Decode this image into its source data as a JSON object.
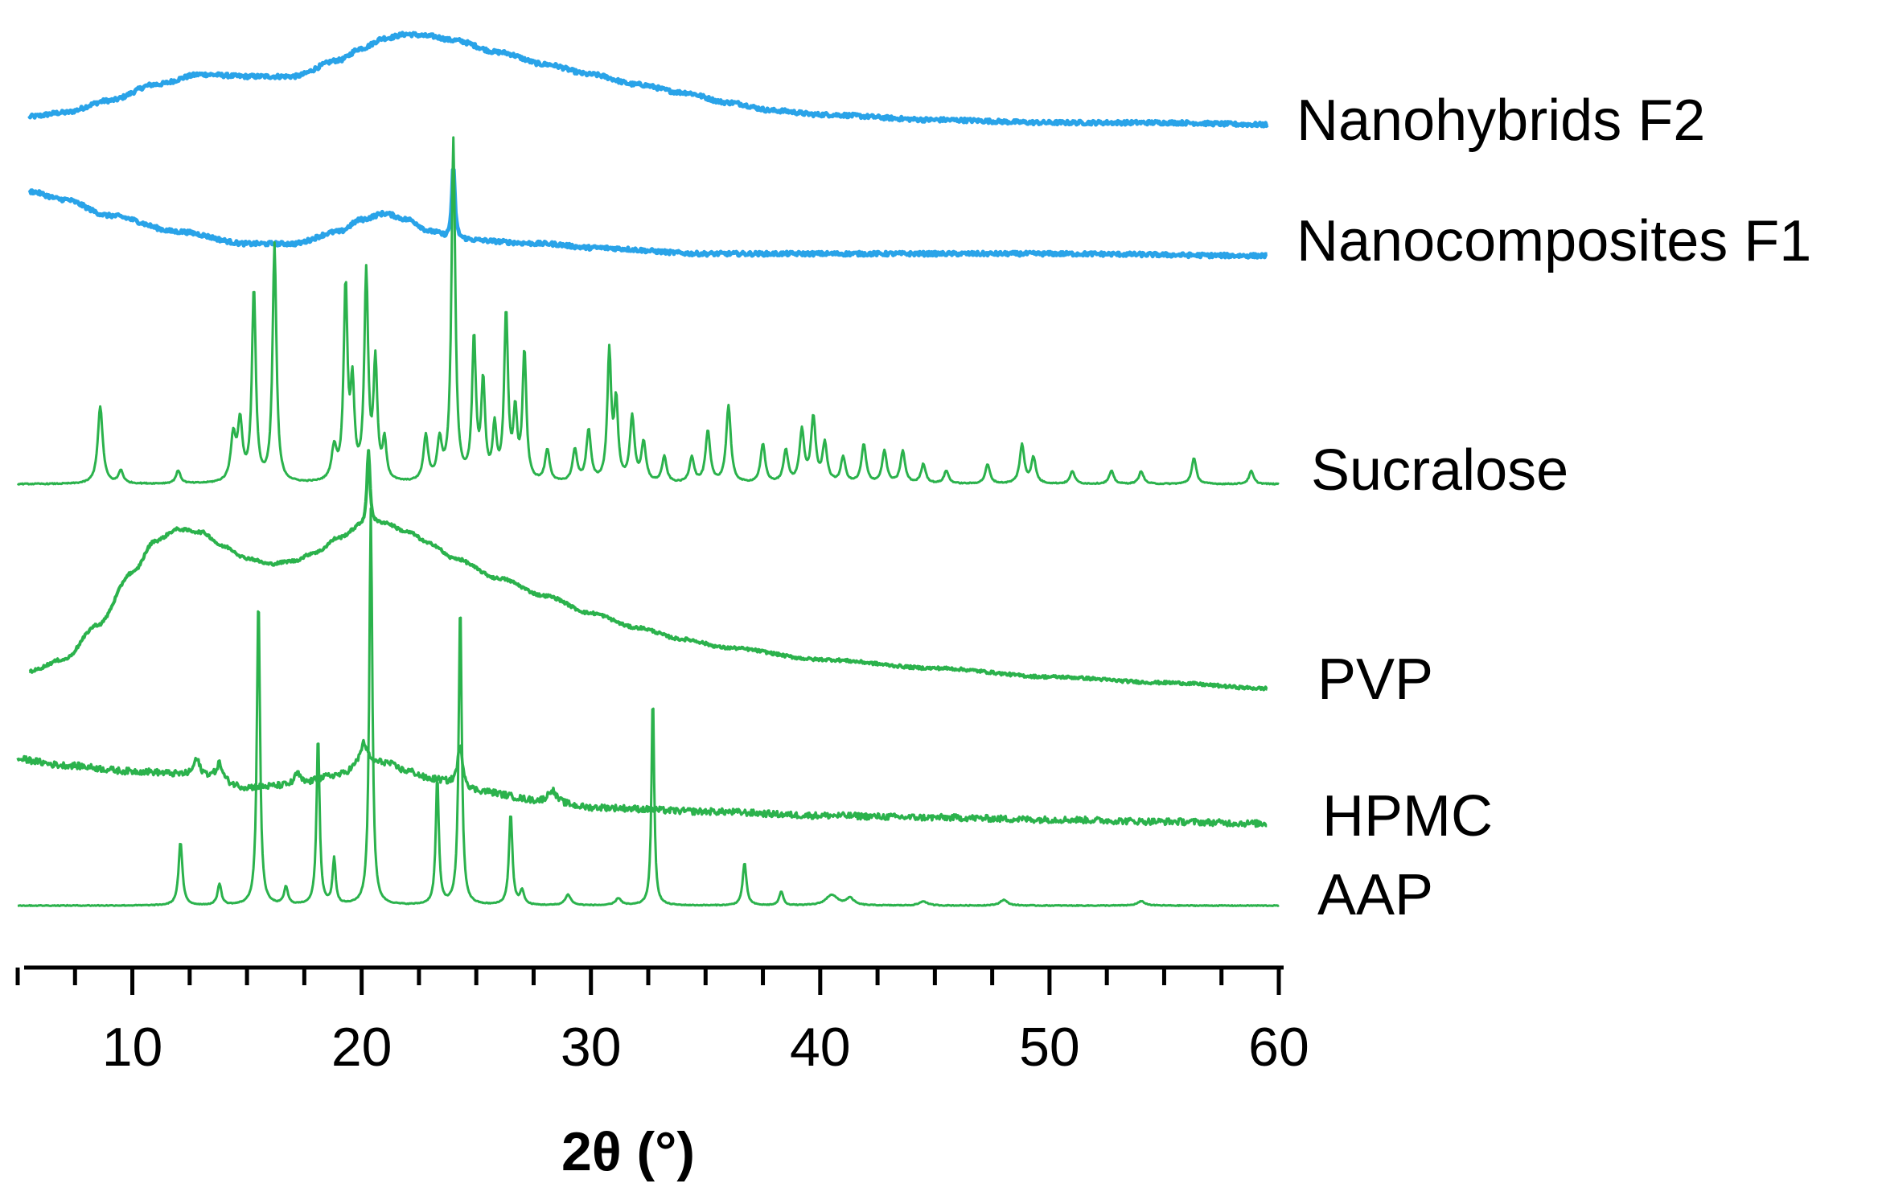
{
  "chart_data": {
    "type": "line",
    "title": "",
    "xlabel": "2θ (°)",
    "ylabel": "",
    "xlim": [
      5,
      60
    ],
    "x_ticks": [
      10,
      20,
      30,
      40,
      50,
      60
    ],
    "grid": false,
    "layout": "stacked-offset",
    "series": [
      {
        "name": "Nanohybrids F2",
        "color": "#29a3e8",
        "noise": 0.5,
        "points": [
          [
            5.5,
            2.0
          ],
          [
            7,
            3.0
          ],
          [
            9,
            6.0
          ],
          [
            11,
            10.0
          ],
          [
            13,
            12.5
          ],
          [
            15,
            12.0
          ],
          [
            17,
            12.0
          ],
          [
            19,
            16.0
          ],
          [
            20,
            19.0
          ],
          [
            21,
            21.5
          ],
          [
            22,
            22.5
          ],
          [
            23,
            22.0
          ],
          [
            24,
            21.0
          ],
          [
            26,
            18.0
          ],
          [
            28,
            15.0
          ],
          [
            30,
            12.5
          ],
          [
            32,
            10.0
          ],
          [
            34,
            8.0
          ],
          [
            36,
            5.5
          ],
          [
            38,
            3.5
          ],
          [
            40,
            2.5
          ],
          [
            45,
            1.2
          ],
          [
            50,
            0.5
          ],
          [
            55,
            0.5
          ],
          [
            59.5,
            0
          ]
        ]
      },
      {
        "name": "Nanocomposites F1",
        "color": "#29a3e8",
        "noise": 0.5,
        "points": [
          [
            5.5,
            16.0
          ],
          [
            7,
            14.0
          ],
          [
            9,
            10.0
          ],
          [
            12,
            6.0
          ],
          [
            15,
            3.0
          ],
          [
            17,
            3.0
          ],
          [
            19,
            6.0
          ],
          [
            20,
            9.0
          ],
          [
            21,
            10.5
          ],
          [
            22,
            9.0
          ],
          [
            23,
            6.0
          ],
          [
            24,
            4.0
          ],
          [
            28,
            3.0
          ],
          [
            30,
            2.0
          ],
          [
            35,
            0.5
          ],
          [
            40,
            0.5
          ],
          [
            50,
            0.5
          ],
          [
            59.5,
            0
          ]
        ],
        "peaks": [
          [
            24.0,
            18.0,
            0.08
          ]
        ]
      },
      {
        "name": "Sucralose",
        "color": "#2bb24c",
        "noise": 0.08,
        "points": [
          [
            5,
            0
          ],
          [
            60,
            0
          ]
        ],
        "peaks": [
          [
            8.6,
            12.0,
            0.13
          ],
          [
            9.5,
            2.0,
            0.12
          ],
          [
            12.0,
            2.0,
            0.12
          ],
          [
            14.4,
            7.0,
            0.13
          ],
          [
            14.7,
            9.0,
            0.12
          ],
          [
            15.3,
            30.0,
            0.1
          ],
          [
            16.2,
            37.0,
            0.1
          ],
          [
            18.8,
            5.0,
            0.13
          ],
          [
            19.3,
            30.0,
            0.1
          ],
          [
            19.6,
            14.0,
            0.1
          ],
          [
            20.2,
            32.0,
            0.1
          ],
          [
            20.6,
            18.0,
            0.1
          ],
          [
            21.0,
            6.0,
            0.1
          ],
          [
            22.8,
            7.0,
            0.12
          ],
          [
            23.4,
            6.0,
            0.12
          ],
          [
            24.0,
            53.0,
            0.1
          ],
          [
            24.9,
            22.0,
            0.1
          ],
          [
            25.3,
            15.0,
            0.1
          ],
          [
            25.8,
            8.0,
            0.1
          ],
          [
            26.3,
            26.0,
            0.1
          ],
          [
            26.7,
            10.0,
            0.1
          ],
          [
            27.1,
            20.0,
            0.1
          ],
          [
            28.1,
            5.0,
            0.12
          ],
          [
            29.3,
            5.0,
            0.12
          ],
          [
            29.9,
            8.0,
            0.12
          ],
          [
            30.8,
            20.0,
            0.1
          ],
          [
            31.1,
            12.0,
            0.1
          ],
          [
            31.8,
            10.0,
            0.12
          ],
          [
            32.3,
            6.0,
            0.12
          ],
          [
            33.2,
            4.0,
            0.12
          ],
          [
            34.4,
            4.0,
            0.12
          ],
          [
            35.1,
            8.0,
            0.12
          ],
          [
            36.0,
            12.0,
            0.12
          ],
          [
            37.5,
            6.0,
            0.12
          ],
          [
            38.5,
            5.0,
            0.12
          ],
          [
            39.2,
            8.0,
            0.12
          ],
          [
            39.7,
            10.0,
            0.12
          ],
          [
            40.2,
            6.0,
            0.12
          ],
          [
            41.0,
            4.0,
            0.12
          ],
          [
            41.9,
            6.0,
            0.12
          ],
          [
            42.8,
            5.0,
            0.12
          ],
          [
            43.6,
            5.0,
            0.12
          ],
          [
            44.5,
            3.0,
            0.12
          ],
          [
            45.5,
            2.0,
            0.12
          ],
          [
            47.3,
            3.0,
            0.12
          ],
          [
            48.8,
            6.0,
            0.12
          ],
          [
            49.3,
            4.0,
            0.12
          ],
          [
            51.0,
            2.0,
            0.12
          ],
          [
            52.7,
            2.0,
            0.12
          ],
          [
            54.0,
            2.0,
            0.12
          ],
          [
            56.3,
            4.0,
            0.12
          ],
          [
            58.8,
            2.0,
            0.12
          ]
        ]
      },
      {
        "name": "PVP",
        "color": "#2bb24c",
        "noise": 0.25,
        "points": [
          [
            5.5,
            3.0
          ],
          [
            7,
            5.0
          ],
          [
            8.5,
            11.0
          ],
          [
            10,
            20.0
          ],
          [
            11,
            25.5
          ],
          [
            12,
            27.5
          ],
          [
            13,
            27.0
          ],
          [
            14,
            24.5
          ],
          [
            15,
            22.5
          ],
          [
            16,
            21.5
          ],
          [
            17,
            22.0
          ],
          [
            18,
            23.5
          ],
          [
            19,
            26.0
          ],
          [
            20,
            28.0
          ],
          [
            21,
            28.5
          ],
          [
            22,
            27.0
          ],
          [
            23,
            25.0
          ],
          [
            24,
            22.5
          ],
          [
            26,
            19.0
          ],
          [
            28,
            16.0
          ],
          [
            30,
            13.0
          ],
          [
            32,
            10.5
          ],
          [
            34,
            8.5
          ],
          [
            36,
            7.0
          ],
          [
            40,
            5.0
          ],
          [
            45,
            3.5
          ],
          [
            50,
            2.0
          ],
          [
            55,
            1.0
          ],
          [
            59.5,
            0
          ]
        ],
        "peaks": [
          [
            20.3,
            13.0,
            0.08
          ]
        ]
      },
      {
        "name": "HPMC",
        "color": "#2bb24c",
        "noise": 0.8,
        "points": [
          [
            5,
            16.0
          ],
          [
            7,
            14.5
          ],
          [
            10,
            13.0
          ],
          [
            13,
            12.0
          ],
          [
            15,
            9.0
          ],
          [
            17,
            9.5
          ],
          [
            19,
            12.0
          ],
          [
            20,
            14.0
          ],
          [
            21,
            15.0
          ],
          [
            22,
            13.0
          ],
          [
            23,
            11.0
          ],
          [
            25,
            8.0
          ],
          [
            28,
            5.5
          ],
          [
            30,
            4.0
          ],
          [
            35,
            3.0
          ],
          [
            40,
            2.0
          ],
          [
            45,
            1.5
          ],
          [
            50,
            1.0
          ],
          [
            55,
            0.5
          ],
          [
            59.5,
            0
          ]
        ],
        "peaks": [
          [
            12.8,
            4.0,
            0.15
          ],
          [
            13.8,
            4.0,
            0.15
          ],
          [
            17.2,
            3.0,
            0.15
          ],
          [
            20.1,
            6.0,
            0.2
          ],
          [
            24.3,
            10.0,
            0.15
          ],
          [
            28.3,
            3.0,
            0.2
          ]
        ]
      },
      {
        "name": "AAP",
        "color": "#2bb24c",
        "noise": 0.06,
        "points": [
          [
            5,
            0
          ],
          [
            60,
            0
          ]
        ],
        "peaks": [
          [
            12.1,
            9.0,
            0.1
          ],
          [
            13.8,
            3.0,
            0.1
          ],
          [
            15.5,
            44.0,
            0.08
          ],
          [
            16.7,
            2.5,
            0.1
          ],
          [
            18.1,
            24.0,
            0.08
          ],
          [
            18.8,
            6.5,
            0.08
          ],
          [
            20.4,
            56.0,
            0.08
          ],
          [
            23.3,
            18.0,
            0.08
          ],
          [
            24.3,
            43.0,
            0.08
          ],
          [
            26.5,
            13.0,
            0.09
          ],
          [
            27.0,
            2.0,
            0.1
          ],
          [
            29.0,
            1.5,
            0.15
          ],
          [
            31.2,
            1.0,
            0.15
          ],
          [
            32.7,
            30.0,
            0.07
          ],
          [
            36.7,
            6.0,
            0.1
          ],
          [
            38.3,
            2.0,
            0.1
          ],
          [
            40.5,
            1.5,
            0.3
          ],
          [
            41.3,
            1.0,
            0.2
          ],
          [
            44.5,
            0.6,
            0.2
          ],
          [
            48.0,
            0.8,
            0.2
          ],
          [
            54.0,
            0.6,
            0.2
          ]
        ]
      }
    ]
  }
}
